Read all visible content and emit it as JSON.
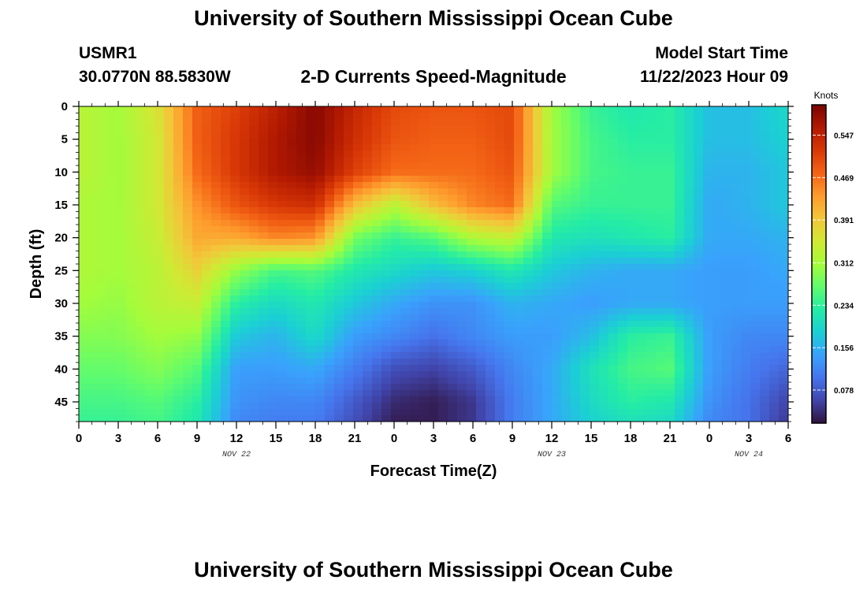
{
  "page": {
    "title": "University of Southern Mississippi Ocean Cube",
    "title_bottom": "University of Southern Mississippi Ocean Cube",
    "station": "USMR1",
    "coordinates": "30.0770N  88.5830W",
    "model_start_label": "Model Start Time",
    "model_start_value": "11/22/2023 Hour 09"
  },
  "chart_data": {
    "type": "heatmap",
    "title": "2-D Currents Speed-Magnitude",
    "xlabel": "Forecast Time(Z)",
    "ylabel": "Depth (ft)",
    "y_ticks": [
      "0",
      "5",
      "10",
      "15",
      "20",
      "25",
      "30",
      "35",
      "40",
      "45"
    ],
    "y_range": [
      0,
      48
    ],
    "x_ticks": [
      "0",
      "3",
      "6",
      "9",
      "12",
      "15",
      "18",
      "21",
      "0",
      "3",
      "6",
      "9",
      "12",
      "15",
      "18",
      "21",
      "0",
      "3",
      "6"
    ],
    "x_range_hours": [
      0,
      54
    ],
    "date_labels": [
      {
        "text": "NOV 22",
        "hour": 12
      },
      {
        "text": "NOV 23",
        "hour": 36
      },
      {
        "text": "NOV 24",
        "hour": 51
      }
    ],
    "colorbar": {
      "title": "Knots",
      "ticks": [
        "0.547",
        "0.469",
        "0.391",
        "0.312",
        "0.234",
        "0.156",
        "0.078"
      ],
      "tick_values": [
        0.547,
        0.469,
        0.391,
        0.312,
        0.234,
        0.156,
        0.078
      ],
      "range": [
        0.02,
        0.6
      ],
      "colormap": [
        "#30123b",
        "#4145ab",
        "#4675ed",
        "#39a2fc",
        "#1bcfd4",
        "#24eca6",
        "#61fc6c",
        "#a4fc3b",
        "#d1e834",
        "#f3c63a",
        "#fe9b2d",
        "#f36315",
        "#d93806",
        "#b11901",
        "#7a0403"
      ]
    },
    "depths_ft": [
      0,
      5,
      10,
      15,
      20,
      25,
      30,
      35,
      40,
      45,
      48
    ],
    "hours": [
      0,
      3,
      6,
      9,
      12,
      15,
      18,
      21,
      24,
      27,
      30,
      33,
      36,
      39,
      42,
      45,
      48,
      51,
      54
    ],
    "speed_knots": [
      [
        0.33,
        0.31,
        0.36,
        0.48,
        0.51,
        0.55,
        0.59,
        0.54,
        0.5,
        0.49,
        0.49,
        0.5,
        0.31,
        0.24,
        0.22,
        0.23,
        0.17,
        0.17,
        0.2
      ],
      [
        0.33,
        0.31,
        0.35,
        0.48,
        0.52,
        0.56,
        0.59,
        0.53,
        0.49,
        0.48,
        0.48,
        0.5,
        0.31,
        0.25,
        0.23,
        0.23,
        0.17,
        0.17,
        0.19
      ],
      [
        0.33,
        0.31,
        0.35,
        0.47,
        0.52,
        0.56,
        0.58,
        0.51,
        0.47,
        0.47,
        0.47,
        0.49,
        0.31,
        0.25,
        0.24,
        0.24,
        0.16,
        0.16,
        0.18
      ],
      [
        0.32,
        0.31,
        0.35,
        0.44,
        0.49,
        0.52,
        0.53,
        0.4,
        0.33,
        0.4,
        0.45,
        0.47,
        0.26,
        0.24,
        0.24,
        0.24,
        0.15,
        0.16,
        0.18
      ],
      [
        0.32,
        0.31,
        0.34,
        0.42,
        0.42,
        0.45,
        0.44,
        0.28,
        0.24,
        0.26,
        0.32,
        0.34,
        0.22,
        0.21,
        0.22,
        0.23,
        0.15,
        0.15,
        0.16
      ],
      [
        0.32,
        0.31,
        0.33,
        0.38,
        0.3,
        0.25,
        0.26,
        0.22,
        0.2,
        0.18,
        0.19,
        0.22,
        0.18,
        0.16,
        0.15,
        0.15,
        0.14,
        0.14,
        0.15
      ],
      [
        0.31,
        0.3,
        0.33,
        0.34,
        0.23,
        0.2,
        0.22,
        0.18,
        0.15,
        0.13,
        0.13,
        0.16,
        0.15,
        0.14,
        0.15,
        0.15,
        0.14,
        0.14,
        0.14
      ],
      [
        0.29,
        0.29,
        0.31,
        0.3,
        0.18,
        0.16,
        0.2,
        0.14,
        0.12,
        0.1,
        0.12,
        0.14,
        0.14,
        0.17,
        0.23,
        0.24,
        0.14,
        0.12,
        0.12
      ],
      [
        0.27,
        0.27,
        0.29,
        0.26,
        0.14,
        0.14,
        0.15,
        0.11,
        0.07,
        0.06,
        0.08,
        0.12,
        0.15,
        0.21,
        0.25,
        0.26,
        0.14,
        0.11,
        0.09
      ],
      [
        0.25,
        0.25,
        0.26,
        0.23,
        0.13,
        0.12,
        0.12,
        0.08,
        0.04,
        0.03,
        0.05,
        0.11,
        0.15,
        0.2,
        0.23,
        0.22,
        0.13,
        0.1,
        0.06
      ],
      [
        0.24,
        0.24,
        0.25,
        0.22,
        0.12,
        0.11,
        0.11,
        0.07,
        0.03,
        0.03,
        0.05,
        0.11,
        0.15,
        0.19,
        0.21,
        0.2,
        0.12,
        0.1,
        0.05
      ]
    ]
  }
}
